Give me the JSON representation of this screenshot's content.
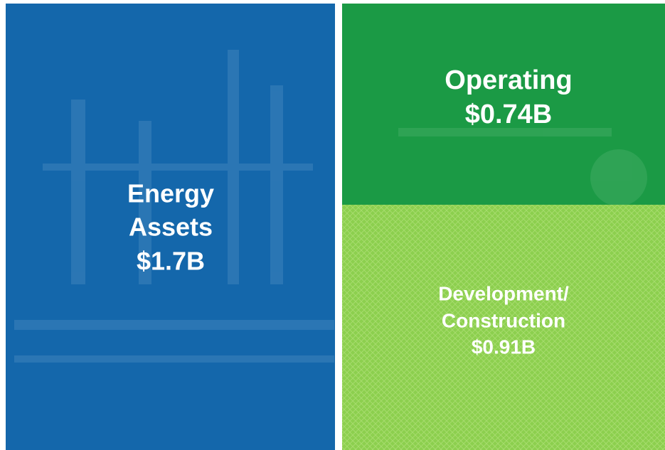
{
  "panels": [
    {
      "lines": [
        "Energy",
        "Assets",
        "$1.7B"
      ]
    },
    {
      "lines": [
        "Operating",
        "$0.74B"
      ]
    },
    {
      "lines": [
        "Development/",
        "Construction",
        "$0.91B"
      ]
    }
  ]
}
